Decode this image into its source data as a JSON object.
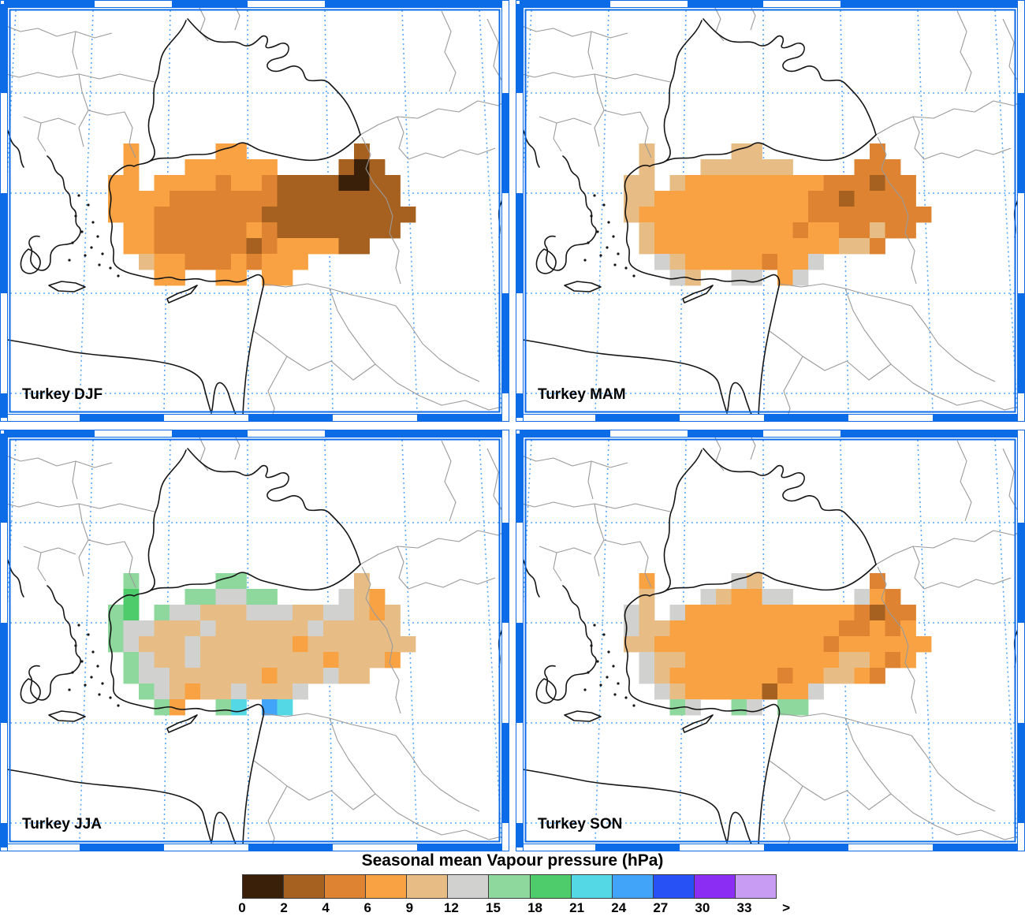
{
  "figure": {
    "title": "Seasonal mean Vapour pressure (hPa)"
  },
  "colorbar": {
    "labels": [
      "0",
      "2",
      "4",
      "6",
      "9",
      "12",
      "15",
      "18",
      "21",
      "24",
      "27",
      "30",
      "33",
      ">"
    ],
    "colors": [
      "#3a2008",
      "#a6601f",
      "#de8331",
      "#f9a243",
      "#e8bd85",
      "#d1d1d0",
      "#8ed89e",
      "#4ecc6c",
      "#55d8e6",
      "#42a4f8",
      "#2750f5",
      "#8b2df2",
      "#c99cf3"
    ]
  },
  "palette": {
    "K": "#3a2008",
    "D": "#a6601f",
    "B": "#de8331",
    "O": "#f9a243",
    "T": "#e8bd85",
    "G": "#d1d1d0",
    "g": "#8ed89e",
    "N": "#4ecc6c",
    "C": "#55d8e6",
    "L": "#42a4f8",
    "U": "#2750f5",
    "P": "#8b2df2",
    "V": "#c99cf3"
  },
  "map_colors": {
    "frame_blue": "#0c6ce8",
    "graticule_blue": "#57a8fc",
    "coast_black": "#151515",
    "border_gray": "#9a9a9a"
  },
  "panels": [
    {
      "id": "djf",
      "label": "Turkey DJF",
      "grid": [
        ".O.....OO.......D...",
        ".O...OOOOOO....DKD..",
        "OO.OOOOBOOBDDDDKKDD.",
        "OOOOBBBBBBBDDDDDDDD.",
        "OOOBBBBBBBDDDDDDDDDD",
        ".OOBBBBBBOBDDDDDDDD.",
        ".OOBBBBBBDBOOOODD...",
        "..TOOBBBOBOOO.......",
        "...OO..OO.OO........"
      ]
    },
    {
      "id": "mam",
      "label": "Turkey MAM",
      "grid": [
        ".T.....TT.......B...",
        ".T...TTTTTT....BBB..",
        "TT.TOOOOOOOOOBBBDBB.",
        "TTOOOOOOOOOOBBDBBBB.",
        "TOOOOOOOOOOOBBBBBBBB",
        ".TOOOOOOOOOBOOBBTBB.",
        ".TOOOOOOOOOOOOTTB...",
        "..GTOOOOOBOOG.......",
        "...GT..GG.OG........"
      ]
    },
    {
      "id": "jja",
      "label": "Turkey JJA",
      "grid": [
        ".g.....gg.......T...",
        ".N...ggGGgg....GTO..",
        "gN.gGGTTTGGGTTGGTOT.",
        "gGGTTTGTTTTTTGTTTTT.",
        "gGTTTGTTTTTTOTTTTTTT",
        ".gGTTGTTTTTTTTOTTTO.",
        ".gGGTTTTTTOTTTGTT...",
        "..gGTOTTGTTTG.......",
        "...gO..gC.LC........"
      ]
    },
    {
      "id": "son",
      "label": "Turkey SON",
      "grid": [
        ".O.....GT.......B...",
        ".T...GTOOGG....GOB..",
        "GT.GOOOOOOOOOOOBDBB.",
        "GTTOOOOOOOOOOOBBOBO.",
        "TTOOOOOOOOOOOBOOOOOO",
        ".GTTOOOOOOOOOOTTOBO.",
        ".GTOOOOOOOBOOTTOB...",
        "..GTOOOOODOOG.......",
        "...gG..gG.gg........"
      ]
    }
  ]
}
